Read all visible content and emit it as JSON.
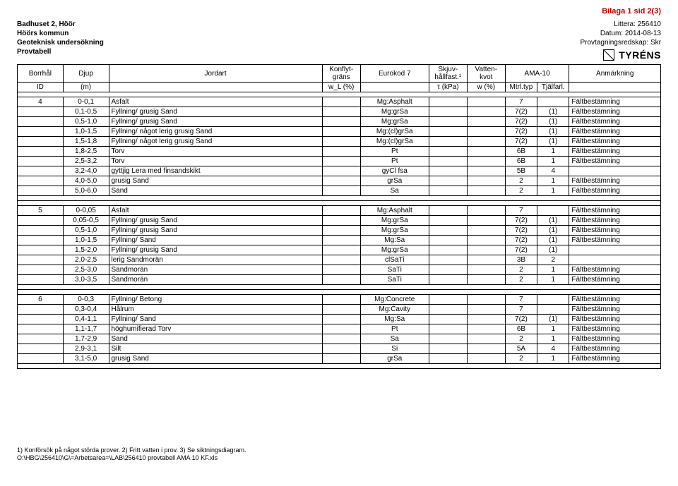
{
  "page_label": "Bilaga 1 sid 2(3)",
  "header": {
    "left": [
      "Badhuset 2, Höör",
      "Höörs kommun",
      "Geoteknisk undersökning",
      "Provtabell"
    ],
    "right": [
      {
        "label": "Littera:",
        "value": "256410"
      },
      {
        "label": "Datum:",
        "value": "2014-08-13"
      },
      {
        "label": "Provtagningsredskap:",
        "value": "Skr"
      }
    ],
    "logo_text": "TYRÉNS"
  },
  "columns_top": [
    "Borrhål",
    "Djup",
    "Jordart",
    "Konflyt-gräns",
    "Eurokod 7",
    "Skjuv-hållfast.¹",
    "Vatten-kvot",
    "AMA-10",
    "Anmärkning"
  ],
  "columns_sub": [
    "ID",
    "(m)",
    "",
    "w_L (%)",
    "",
    "τ (kPa)",
    "w (%)",
    "Mtrl.typ",
    "Tjälfarl.",
    ""
  ],
  "blocks": [
    {
      "id": "4",
      "rows": [
        {
          "djup": "0-0,1",
          "jordart": "Asfalt",
          "eurokod": "Mg:Asphalt",
          "mtrltyp": "7",
          "tjalf": "",
          "anm": "Fältbestämning"
        },
        {
          "djup": "0,1-0,5",
          "jordart": "Fyllning/ grusig Sand",
          "eurokod": "Mg:grSa",
          "mtrltyp": "7(2)",
          "tjalf": "(1)",
          "anm": "Fältbestämning"
        },
        {
          "djup": "0,5-1,0",
          "jordart": "Fyllning/ grusig Sand",
          "eurokod": "Mg:grSa",
          "mtrltyp": "7(2)",
          "tjalf": "(1)",
          "anm": "Fältbestämning"
        },
        {
          "djup": "1,0-1,5",
          "jordart": "Fyllning/ något lerig grusig Sand",
          "eurokod": "Mg:(cl)grSa",
          "mtrltyp": "7(2)",
          "tjalf": "(1)",
          "anm": "Fältbestämning"
        },
        {
          "djup": "1,5-1,8",
          "jordart": "Fyllning/ något lerig grusig Sand",
          "eurokod": "Mg:(cl)grSa",
          "mtrltyp": "7(2)",
          "tjalf": "(1)",
          "anm": "Fältbestämning"
        },
        {
          "djup": "1,8-2,5",
          "jordart": "Torv",
          "eurokod": "Pt",
          "mtrltyp": "6B",
          "tjalf": "1",
          "anm": "Fältbestämning"
        },
        {
          "djup": "2,5-3,2",
          "jordart": "Torv",
          "eurokod": "Pt",
          "mtrltyp": "6B",
          "tjalf": "1",
          "anm": "Fältbestämning"
        },
        {
          "djup": "3,2-4,0",
          "jordart": "gyttjig Lera med finsandskikt",
          "eurokod": "gyCl fsa",
          "mtrltyp": "5B",
          "tjalf": "4",
          "anm": ""
        },
        {
          "djup": "4,0-5,0",
          "jordart": "grusig Sand",
          "eurokod": "grSa",
          "mtrltyp": "2",
          "tjalf": "1",
          "anm": "Fältbestämning"
        },
        {
          "djup": "5,0-6,0",
          "jordart": "Sand",
          "eurokod": "Sa",
          "mtrltyp": "2",
          "tjalf": "1",
          "anm": "Fältbestämning"
        }
      ]
    },
    {
      "id": "5",
      "rows": [
        {
          "djup": "0-0,05",
          "jordart": "Asfalt",
          "eurokod": "Mg:Asphalt",
          "mtrltyp": "7",
          "tjalf": "",
          "anm": "Fältbestämning"
        },
        {
          "djup": "0,05-0,5",
          "jordart": "Fyllning/ grusig Sand",
          "eurokod": "Mg:grSa",
          "mtrltyp": "7(2)",
          "tjalf": "(1)",
          "anm": "Fältbestämning"
        },
        {
          "djup": "0,5-1,0",
          "jordart": "Fyllning/ grusig Sand",
          "eurokod": "Mg:grSa",
          "mtrltyp": "7(2)",
          "tjalf": "(1)",
          "anm": "Fältbestämning"
        },
        {
          "djup": "1,0-1,5",
          "jordart": "Fyllning/ Sand",
          "eurokod": "Mg:Sa",
          "mtrltyp": "7(2)",
          "tjalf": "(1)",
          "anm": "Fältbestämning"
        },
        {
          "djup": "1,5-2,0",
          "jordart": "Fyllning/ grusig Sand",
          "eurokod": "Mg:grSa",
          "mtrltyp": "7(2)",
          "tjalf": "(1)",
          "anm": ""
        },
        {
          "djup": "2,0-2,5",
          "jordart": "lerig Sandmorän",
          "eurokod": "clSaTi",
          "mtrltyp": "3B",
          "tjalf": "2",
          "anm": ""
        },
        {
          "djup": "2,5-3,0",
          "jordart": "Sandmorän",
          "eurokod": "SaTi",
          "mtrltyp": "2",
          "tjalf": "1",
          "anm": "Fältbestämning"
        },
        {
          "djup": "3,0-3,5",
          "jordart": "Sandmorän",
          "eurokod": "SaTi",
          "mtrltyp": "2",
          "tjalf": "1",
          "anm": "Fältbestämning"
        }
      ]
    },
    {
      "id": "6",
      "rows": [
        {
          "djup": "0-0,3",
          "jordart": "Fyllning/ Betong",
          "eurokod": "Mg:Concrete",
          "mtrltyp": "7",
          "tjalf": "",
          "anm": "Fältbestämning"
        },
        {
          "djup": "0,3-0,4",
          "jordart": "Hålrum",
          "eurokod": "Mg:Cavity",
          "mtrltyp": "7",
          "tjalf": "",
          "anm": "Fältbestämning"
        },
        {
          "djup": "0,4-1,1",
          "jordart": "Fyllning/ Sand",
          "eurokod": "Mg:Sa",
          "mtrltyp": "7(2)",
          "tjalf": "(1)",
          "anm": "Fältbestämning"
        },
        {
          "djup": "1,1-1,7",
          "jordart": "höghumifierad Torv",
          "eurokod": "Pt",
          "mtrltyp": "6B",
          "tjalf": "1",
          "anm": "Fältbestämning"
        },
        {
          "djup": "1,7-2,9",
          "jordart": "Sand",
          "eurokod": "Sa",
          "mtrltyp": "2",
          "tjalf": "1",
          "anm": "Fältbestämning"
        },
        {
          "djup": "2,9-3,1",
          "jordart": "Silt",
          "eurokod": "Si",
          "mtrltyp": "5A",
          "tjalf": "4",
          "anm": "Fältbestämning"
        },
        {
          "djup": "3,1-5,0",
          "jordart": "grusig Sand",
          "eurokod": "grSa",
          "mtrltyp": "2",
          "tjalf": "1",
          "anm": "Fältbestämning"
        }
      ]
    }
  ],
  "footnotes": [
    "1) Konförsök på något störda prover.   2) Fritt vatten i prov.   3) Se siktningsdiagram.",
    "O:\\HBG\\256410\\G\\=Arbetsarea=\\LAB\\256410 provtabell AMA 10 KF.xls"
  ],
  "style": {
    "border_color": "#000000",
    "bg": "#ffffff",
    "font_size_body": 10,
    "font_size_header": 11,
    "topright_color": "#c00000"
  }
}
